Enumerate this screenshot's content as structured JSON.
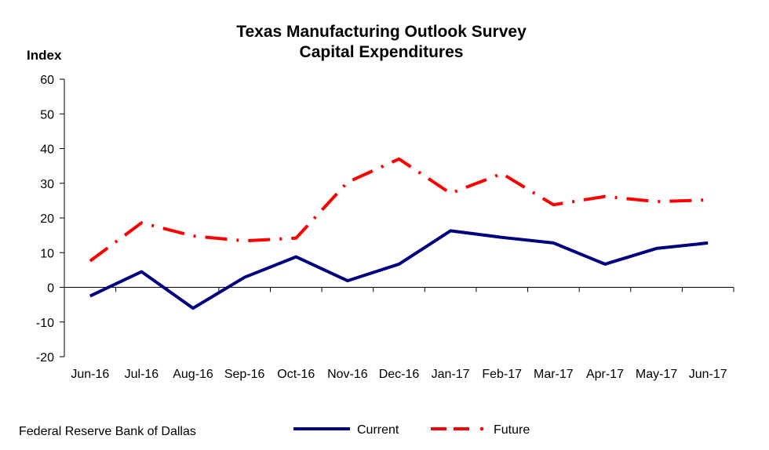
{
  "chart_data": {
    "type": "line",
    "title": "Texas Manufacturing Outlook Survey",
    "subtitle": "Capital Expenditures",
    "ylabel": "Index",
    "xlabel": "",
    "categories": [
      "Jun-16",
      "Jul-16",
      "Aug-16",
      "Sep-16",
      "Oct-16",
      "Nov-16",
      "Dec-16",
      "Jan-17",
      "Feb-17",
      "Mar-17",
      "Apr-17",
      "May-17",
      "Jun-17"
    ],
    "ylim": [
      -20,
      60
    ],
    "yticks": [
      -20,
      -10,
      0,
      10,
      20,
      30,
      40,
      50,
      60
    ],
    "grid": false,
    "legend_position": "bottom",
    "series": [
      {
        "name": "Current",
        "color": "#000080",
        "style": "solid",
        "values": [
          -2.5,
          4.5,
          -6.0,
          2.9,
          8.8,
          1.9,
          6.7,
          16.3,
          14.4,
          12.8,
          6.7,
          11.2,
          12.8
        ]
      },
      {
        "name": "Future",
        "color": "#ff0000",
        "style": "dash-dot",
        "values": [
          7.6,
          18.6,
          14.8,
          13.4,
          14.2,
          30.3,
          37.0,
          27.1,
          32.8,
          23.8,
          26.2,
          24.7,
          25.2
        ]
      }
    ]
  },
  "footer": {
    "source": "Federal Reserve Bank of Dallas"
  }
}
